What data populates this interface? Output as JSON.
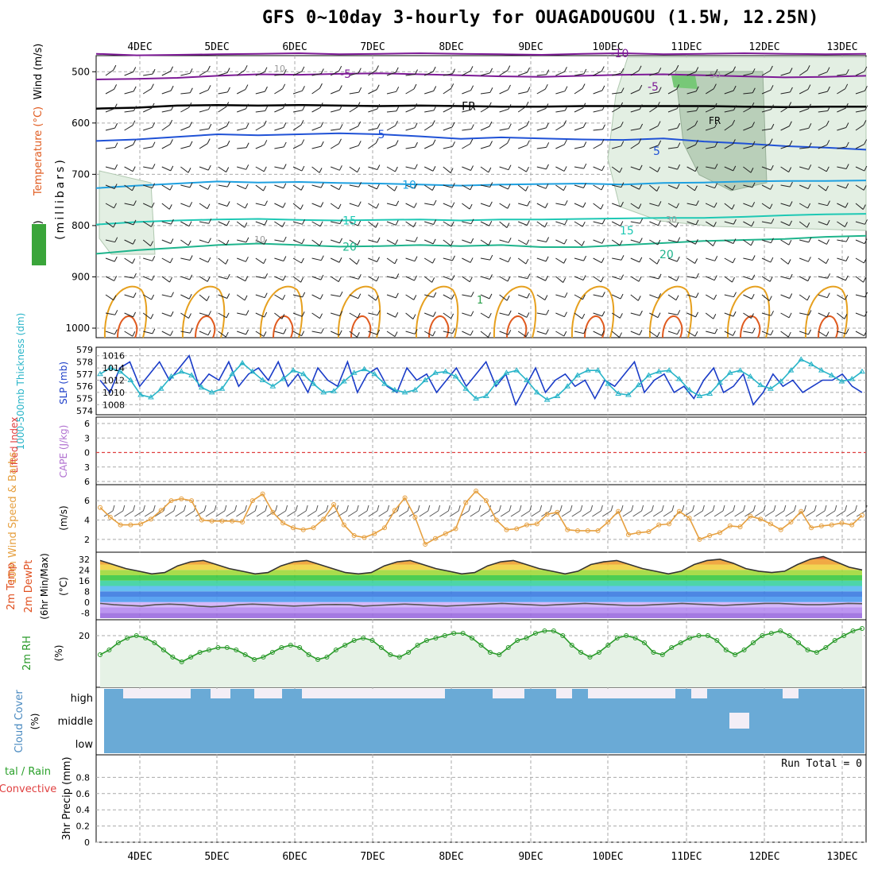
{
  "title": "GFS 0~10day 3-hourly for OUAGADOUGOU (1.5W, 12.25N)",
  "dates": [
    "4DEC",
    "5DEC",
    "6DEC",
    "7DEC",
    "8DEC",
    "9DEC",
    "10DEC",
    "11DEC",
    "12DEC",
    "13DEC"
  ],
  "colors": {
    "panel_border": "#000000",
    "grid": "#aaaaaa",
    "temp_neg10": "#7d1a96",
    "temp_fr": "#000000",
    "temp_5": "#2052d6",
    "temp_10": "#1ea0e0",
    "temp_15": "#1ec8b4",
    "temp_20": "#1eb48c",
    "temp_warm": "#e6a01e",
    "temp_hot": "#e05a1e",
    "rh_fill": "#cfe3cf",
    "slp": "#1a3cc8",
    "thickness": "#28b4c8",
    "wind10m": "#e6a040",
    "rh2m": "#2a9a2a",
    "cloud": "#6aaad6",
    "cloud_gap": "#f3eef6",
    "li_line": "#e04040"
  },
  "axis_labels": {
    "p1_wind": "Wind (m/s)",
    "p1_temp": "Temperature (°C)",
    "p1_rh": "RH (%)",
    "p1_pressure": "(millibars)",
    "p2_thk": "1000-500mb Thickness (dm)",
    "p2_slp": "SLP (mb)",
    "p3_li": "Lifted Index",
    "p3_cape": "CAPE (J/kg)",
    "p4_wind": "10m Wind Speed & Barbs",
    "p4_unit": "(m/s)",
    "p5_temp": "2m Temp",
    "p5_dew": "2m DewPt",
    "p5_minmax": "(6hr Min/Max)",
    "p5_unit": "(°C)",
    "p6_rh": "2m RH",
    "p6_unit": "(%)",
    "p7_cloud": "Cloud Cover",
    "p7_unit": "(%)",
    "p8_total": "tal / Rain",
    "p8_conv": "Convective",
    "p8_unit": "3hr Precip (mm)"
  },
  "run_total": "Run Total = 0",
  "contour_labels": {
    "t_neg10": "-10",
    "t_neg5": "-5",
    "t_fr": "FR",
    "t_5": "5",
    "t_10": "10",
    "t_15": "15",
    "t_20": "20",
    "rh_10": "10",
    "rh_30": "30",
    "rh_50": "50",
    "t_1": "1"
  },
  "chart_data": [
    {
      "type": "line",
      "name": "pressure-panel",
      "ylabel": "(millibars)",
      "yticks": [
        "500",
        "600",
        "700",
        "800",
        "900",
        "1000"
      ],
      "ylim": [
        450,
        1000
      ],
      "contours": [
        {
          "label": "-10",
          "values": [
            465,
            468,
            467,
            466,
            465,
            464,
            466,
            465,
            464,
            465,
            466,
            467,
            465,
            464,
            466,
            465,
            464,
            465,
            466,
            465
          ]
        },
        {
          "label": "-5",
          "values": [
            515,
            514,
            512,
            508,
            505,
            506,
            504,
            503,
            505,
            507,
            509,
            510,
            508,
            506,
            505,
            507,
            509,
            511,
            510,
            508
          ]
        },
        {
          "label": "FR",
          "values": [
            572,
            570,
            566,
            565,
            566,
            565,
            566,
            567,
            566,
            567,
            568,
            568,
            567,
            567,
            567,
            567,
            568,
            569,
            568,
            568
          ]
        },
        {
          "label": "5",
          "values": [
            635,
            632,
            627,
            622,
            624,
            622,
            620,
            622,
            626,
            631,
            628,
            630,
            632,
            633,
            630,
            636,
            640,
            645,
            648,
            652
          ]
        },
        {
          "label": "10",
          "values": [
            727,
            722,
            718,
            714,
            716,
            715,
            717,
            718,
            720,
            722,
            720,
            719,
            718,
            720,
            717,
            716,
            714,
            713,
            713,
            712
          ]
        },
        {
          "label": "15",
          "values": [
            798,
            793,
            790,
            788,
            787,
            789,
            790,
            789,
            788,
            790,
            788,
            788,
            787,
            786,
            785,
            785,
            783,
            780,
            778,
            777
          ]
        },
        {
          "label": "20",
          "values": [
            855,
            848,
            843,
            838,
            835,
            838,
            841,
            840,
            838,
            840,
            838,
            842,
            842,
            838,
            834,
            830,
            828,
            826,
            822,
            820
          ]
        }
      ],
      "grid": true
    },
    {
      "type": "line",
      "name": "slp-thickness",
      "ylabel_left": "1000-500mb Thickness (dm)",
      "ylabel_right": "SLP (mb)",
      "yticks_left": [
        "574",
        "575",
        "576",
        "577",
        "578",
        "579"
      ],
      "yticks_right": [
        "1008",
        "1010",
        "1012",
        "1014",
        "1016"
      ],
      "series": [
        {
          "name": "SLP (mb)",
          "values": [
            1012,
            1010,
            1014,
            1015,
            1011,
            1013,
            1015,
            1012,
            1014,
            1016,
            1011,
            1013,
            1012,
            1015,
            1011,
            1013,
            1014,
            1012,
            1015,
            1011,
            1013,
            1010,
            1014,
            1012,
            1011,
            1015,
            1010,
            1013,
            1014,
            1011,
            1010,
            1014,
            1012,
            1013,
            1010,
            1012,
            1014,
            1011,
            1013,
            1015,
            1011,
            1013,
            1008,
            1011,
            1014,
            1010,
            1012,
            1013,
            1011,
            1012,
            1009,
            1012,
            1011,
            1013,
            1015,
            1010,
            1012,
            1013,
            1010,
            1011,
            1009,
            1012,
            1014,
            1010,
            1011,
            1013,
            1008,
            1010,
            1013,
            1011,
            1012,
            1010,
            1011,
            1012,
            1012,
            1013,
            1011,
            1010
          ]
        },
        {
          "name": "1000-500mb Thickness (dm)",
          "values": [
            577,
            577.5,
            577.2,
            576.5,
            575.3,
            575.1,
            575.8,
            576.8,
            577.2,
            576.9,
            575.9,
            575.5,
            575.8,
            577,
            577.9,
            577.2,
            576.5,
            576,
            576.6,
            577.3,
            577,
            576.2,
            575.5,
            575.6,
            576.4,
            577.1,
            577.4,
            577,
            576.2,
            575.7,
            575.5,
            575.7,
            576.5,
            577.1,
            577.2,
            576.8,
            575.8,
            575,
            575.2,
            576.3,
            577.1,
            577.3,
            576.5,
            575.5,
            574.9,
            575.2,
            576,
            576.9,
            577.3,
            577.3,
            576.2,
            575.4,
            575.3,
            576.1,
            576.9,
            577.2,
            577.3,
            576.6,
            575.7,
            575.2,
            575.4,
            576.3,
            577.1,
            577.3,
            576.8,
            576.1,
            575.8,
            576.4,
            577.3,
            578.2,
            577.8,
            577.3,
            576.9,
            576.4,
            576.6,
            577.2
          ]
        }
      ]
    },
    {
      "type": "line",
      "name": "li-cape",
      "ylabel_left": "Lifted Index",
      "ylabel_right": "CAPE (J/kg)",
      "yticks": [
        "-6",
        "-3",
        "0",
        "3",
        "6"
      ],
      "series": [
        {
          "name": "Lifted Index",
          "values": [
            0,
            0,
            0,
            0,
            0,
            0,
            0,
            0,
            0,
            0
          ]
        }
      ]
    },
    {
      "type": "line",
      "name": "wind10m",
      "ylabel": "10m Wind Speed & Barbs",
      "yticks": [
        "2",
        "4",
        "6"
      ],
      "series": [
        {
          "name": "10m Wind Speed",
          "values": [
            5.3,
            4.3,
            3.5,
            3.5,
            3.6,
            4.1,
            5.0,
            6.0,
            6.2,
            6.0,
            4.0,
            3.9,
            3.9,
            3.9,
            3.8,
            6.0,
            6.7,
            4.8,
            3.7,
            3.2,
            3.0,
            3.2,
            4.1,
            5.6,
            3.5,
            2.4,
            2.2,
            2.6,
            3.2,
            5.0,
            6.3,
            4.3,
            1.5,
            2.1,
            2.6,
            3.1,
            5.8,
            7.0,
            6.0,
            4.0,
            3.0,
            3.1,
            3.5,
            3.6,
            4.6,
            4.8,
            3.0,
            2.9,
            2.9,
            2.9,
            3.8,
            4.9,
            2.5,
            2.7,
            2.8,
            3.5,
            3.6,
            4.9,
            4.2,
            2.0,
            2.4,
            2.7,
            3.4,
            3.3,
            4.4,
            4.1,
            3.6,
            3.0,
            3.8,
            4.9,
            3.2,
            3.4,
            3.5,
            3.7,
            3.5,
            4.5
          ]
        }
      ]
    },
    {
      "type": "area",
      "name": "temp-dewpt",
      "ylabel": "(°C)",
      "yticks": [
        "-8",
        "0",
        "8",
        "16",
        "24",
        "32"
      ],
      "series": [
        {
          "name": "2m Temp",
          "values": [
            31,
            28,
            25,
            23,
            21,
            22,
            27,
            30,
            31,
            28,
            25,
            23,
            21,
            22,
            27,
            30,
            31,
            28,
            25,
            22,
            21,
            22,
            27,
            30,
            31,
            28,
            25,
            23,
            21,
            22,
            27,
            30,
            31,
            28,
            25,
            23,
            21,
            23,
            28,
            30,
            31,
            28,
            25,
            23,
            21,
            23,
            28,
            31,
            32,
            29,
            25,
            23,
            22,
            23,
            28,
            32,
            34,
            30,
            26,
            24
          ]
        },
        {
          "name": "2m DewPt",
          "values": [
            -1,
            -2,
            -2.5,
            -3,
            -2,
            -1.5,
            -2,
            -3,
            -3.5,
            -3,
            -2,
            -1.5,
            -2,
            -2.5,
            -3,
            -2.5,
            -2,
            -1.8,
            -2,
            -3,
            -2.5,
            -2,
            -1.5,
            -2,
            -2.5,
            -3,
            -2.5,
            -2,
            -1.5,
            -1,
            -1.5,
            -2,
            -2.5,
            -2,
            -1.5,
            -1,
            -1.5,
            -2,
            -2.5,
            -2.5,
            -2,
            -1.5,
            -1,
            -1.5,
            -2,
            -2.5,
            -2,
            -1.5,
            -1,
            -1,
            -1.5,
            -2,
            -2,
            -1.5,
            -1,
            -1.2
          ]
        }
      ]
    },
    {
      "type": "line",
      "name": "rh2m",
      "ylabel": "2m RH",
      "yticks": [
        "20"
      ],
      "series": [
        {
          "name": "2m RH",
          "values": [
            12,
            14,
            17,
            19,
            20,
            19,
            17,
            14,
            11,
            9,
            11,
            13,
            14,
            15,
            15,
            14,
            12,
            10,
            11,
            13,
            15,
            16,
            15,
            12,
            10,
            11,
            14,
            16,
            18,
            19,
            18,
            15,
            12,
            11,
            13,
            16,
            18,
            19,
            20,
            21,
            21,
            19,
            16,
            13,
            12,
            15,
            18,
            19,
            21,
            22,
            22,
            20,
            16,
            13,
            11,
            13,
            16,
            19,
            20,
            19,
            17,
            13,
            12,
            15,
            17,
            19,
            20,
            20,
            18,
            14,
            12,
            14,
            17,
            20,
            21,
            22,
            20,
            17,
            14,
            13,
            15,
            18,
            20,
            22,
            23
          ]
        }
      ]
    },
    {
      "type": "heatmap",
      "name": "cloud-cover",
      "ylabel": "Cloud Cover",
      "levels": [
        "high",
        "middle",
        "low"
      ]
    },
    {
      "type": "bar",
      "name": "precip",
      "ylabel": "3hr Precip (mm)",
      "yticks": [
        "0",
        "0.2",
        "0.4",
        "0.6",
        "0.8"
      ],
      "ylim": [
        0,
        1
      ],
      "values": []
    }
  ]
}
